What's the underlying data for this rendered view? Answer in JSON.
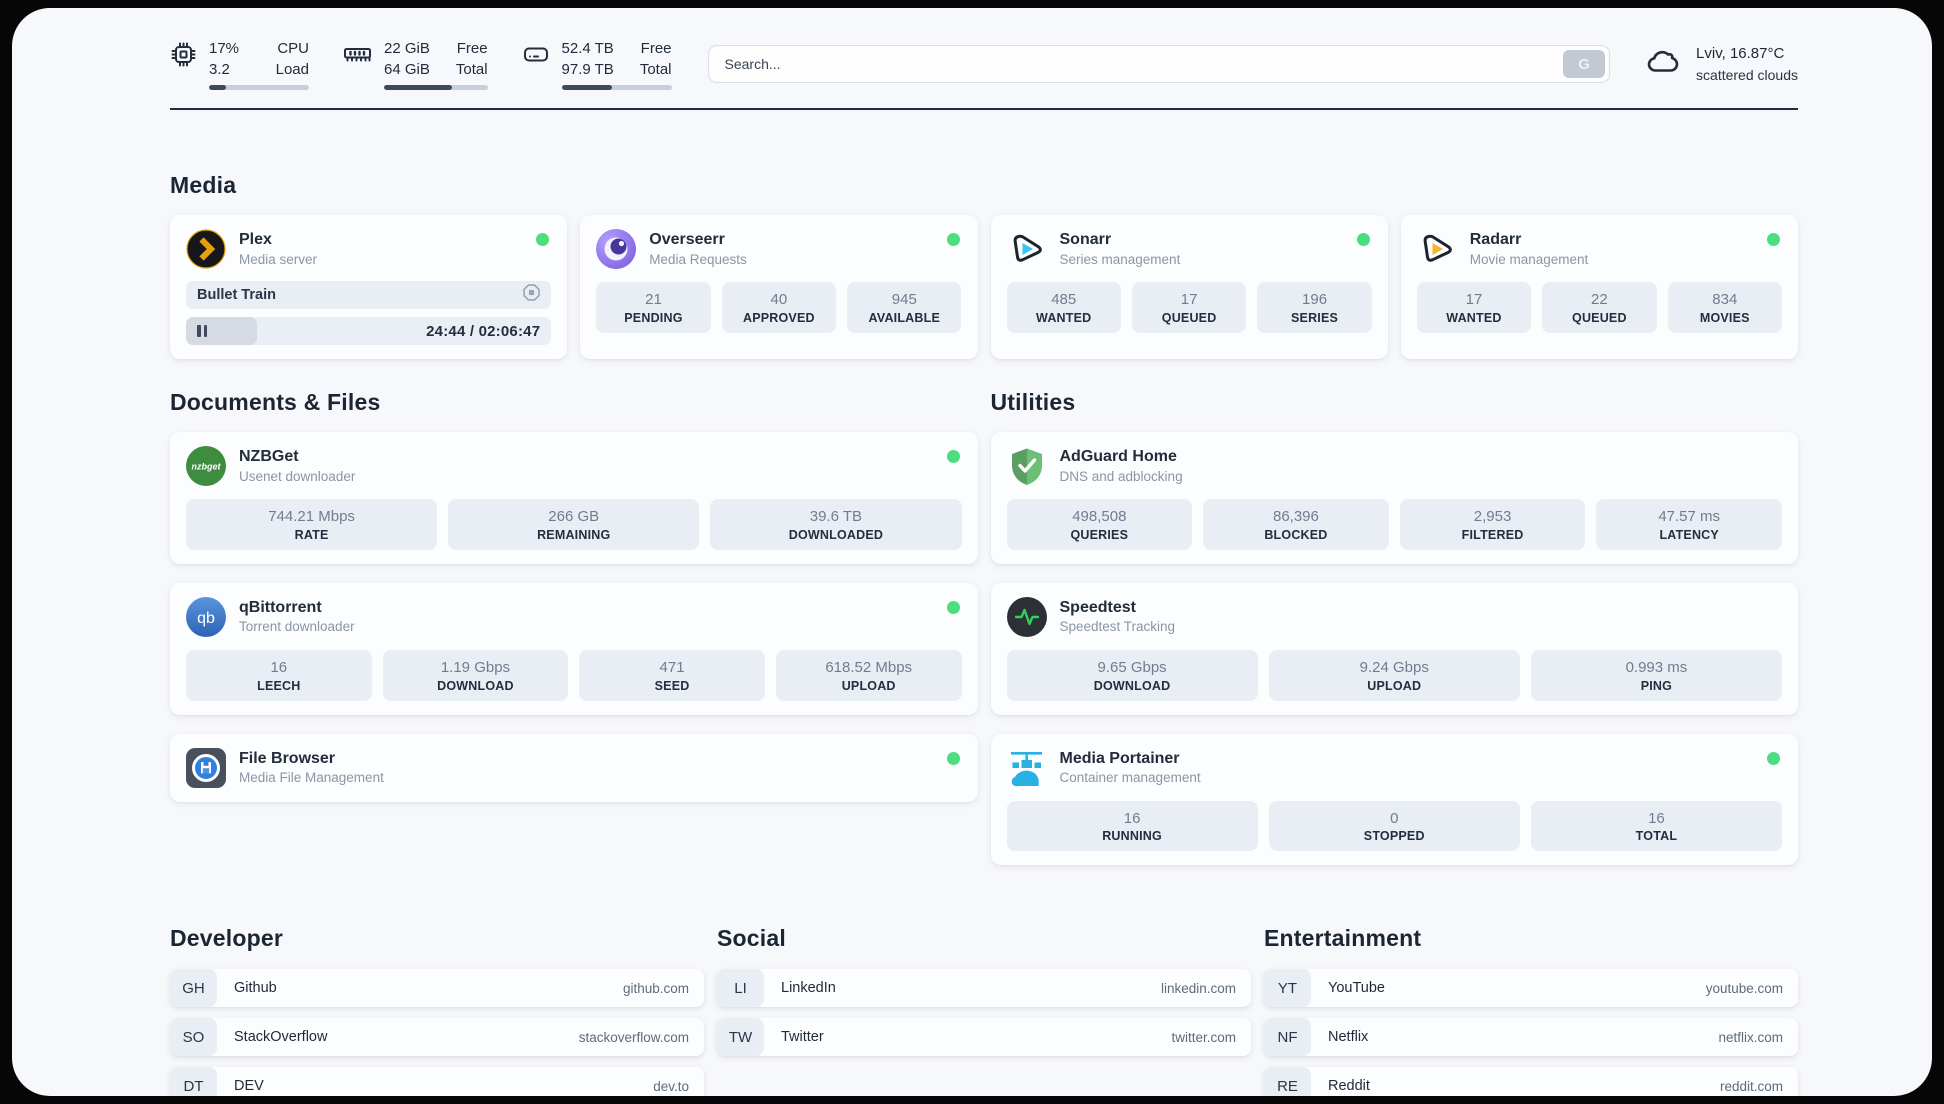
{
  "colors": {
    "status_online": "#4ade80"
  },
  "header": {
    "stats": [
      {
        "icon": "cpu-icon",
        "value_top": "17%",
        "value_bottom": "3.2",
        "label_top": "CPU",
        "label_bottom": "Load",
        "progress_pct": 17
      },
      {
        "icon": "ram-icon",
        "value_top": "22 GiB",
        "value_bottom": "64 GiB",
        "label_top": "Free",
        "label_bottom": "Total",
        "progress_pct": 66
      },
      {
        "icon": "disk-icon",
        "value_top": "52.4 TB",
        "value_bottom": "97.9 TB",
        "label_top": "Free",
        "label_bottom": "Total",
        "progress_pct": 46
      }
    ],
    "search": {
      "placeholder": "Search...",
      "button_label": "G"
    },
    "weather": {
      "location_temp": "Lviv, 16.87°C",
      "condition": "scattered clouds"
    }
  },
  "media": {
    "title": "Media",
    "plex": {
      "name": "Plex",
      "subtitle": "Media server",
      "now_playing": "Bullet Train",
      "time_display": "24:44 / 02:06:47",
      "progress_pct": 19.5
    },
    "overseerr": {
      "name": "Overseerr",
      "subtitle": "Media Requests",
      "stats": [
        {
          "value": "21",
          "label": "PENDING"
        },
        {
          "value": "40",
          "label": "APPROVED"
        },
        {
          "value": "945",
          "label": "AVAILABLE"
        }
      ]
    },
    "sonarr": {
      "name": "Sonarr",
      "subtitle": "Series management",
      "stats": [
        {
          "value": "485",
          "label": "WANTED"
        },
        {
          "value": "17",
          "label": "QUEUED"
        },
        {
          "value": "196",
          "label": "SERIES"
        }
      ]
    },
    "radarr": {
      "name": "Radarr",
      "subtitle": "Movie management",
      "stats": [
        {
          "value": "17",
          "label": "WANTED"
        },
        {
          "value": "22",
          "label": "QUEUED"
        },
        {
          "value": "834",
          "label": "MOVIES"
        }
      ]
    }
  },
  "documents": {
    "title": "Documents & Files",
    "nzbget": {
      "name": "NZBGet",
      "subtitle": "Usenet downloader",
      "stats": [
        {
          "value": "744.21 Mbps",
          "label": "RATE"
        },
        {
          "value": "266 GB",
          "label": "REMAINING"
        },
        {
          "value": "39.6 TB",
          "label": "DOWNLOADED"
        }
      ]
    },
    "qbittorrent": {
      "name": "qBittorrent",
      "subtitle": "Torrent downloader",
      "stats": [
        {
          "value": "16",
          "label": "LEECH"
        },
        {
          "value": "1.19 Gbps",
          "label": "DOWNLOAD"
        },
        {
          "value": "471",
          "label": "SEED"
        },
        {
          "value": "618.52 Mbps",
          "label": "UPLOAD"
        }
      ]
    },
    "filebrowser": {
      "name": "File Browser",
      "subtitle": "Media File Management"
    }
  },
  "utilities": {
    "title": "Utilities",
    "adguard": {
      "name": "AdGuard Home",
      "subtitle": "DNS and adblocking",
      "stats": [
        {
          "value": "498,508",
          "label": "QUERIES"
        },
        {
          "value": "86,396",
          "label": "BLOCKED"
        },
        {
          "value": "2,953",
          "label": "FILTERED"
        },
        {
          "value": "47.57 ms",
          "label": "LATENCY"
        }
      ]
    },
    "speedtest": {
      "name": "Speedtest",
      "subtitle": "Speedtest Tracking",
      "stats": [
        {
          "value": "9.65 Gbps",
          "label": "DOWNLOAD"
        },
        {
          "value": "9.24 Gbps",
          "label": "UPLOAD"
        },
        {
          "value": "0.993 ms",
          "label": "PING"
        }
      ]
    },
    "portainer": {
      "name": "Media Portainer",
      "subtitle": "Container management",
      "stats": [
        {
          "value": "16",
          "label": "RUNNING"
        },
        {
          "value": "0",
          "label": "STOPPED"
        },
        {
          "value": "16",
          "label": "TOTAL"
        }
      ]
    }
  },
  "bookmarks": {
    "developer": {
      "title": "Developer",
      "items": [
        {
          "abbr": "GH",
          "name": "Github",
          "url": "github.com"
        },
        {
          "abbr": "SO",
          "name": "StackOverflow",
          "url": "stackoverflow.com"
        },
        {
          "abbr": "DT",
          "name": "DEV",
          "url": "dev.to"
        }
      ]
    },
    "social": {
      "title": "Social",
      "items": [
        {
          "abbr": "LI",
          "name": "LinkedIn",
          "url": "linkedin.com"
        },
        {
          "abbr": "TW",
          "name": "Twitter",
          "url": "twitter.com"
        }
      ]
    },
    "entertainment": {
      "title": "Entertainment",
      "items": [
        {
          "abbr": "YT",
          "name": "YouTube",
          "url": "youtube.com"
        },
        {
          "abbr": "NF",
          "name": "Netflix",
          "url": "netflix.com"
        },
        {
          "abbr": "RE",
          "name": "Reddit",
          "url": "reddit.com"
        }
      ]
    }
  }
}
